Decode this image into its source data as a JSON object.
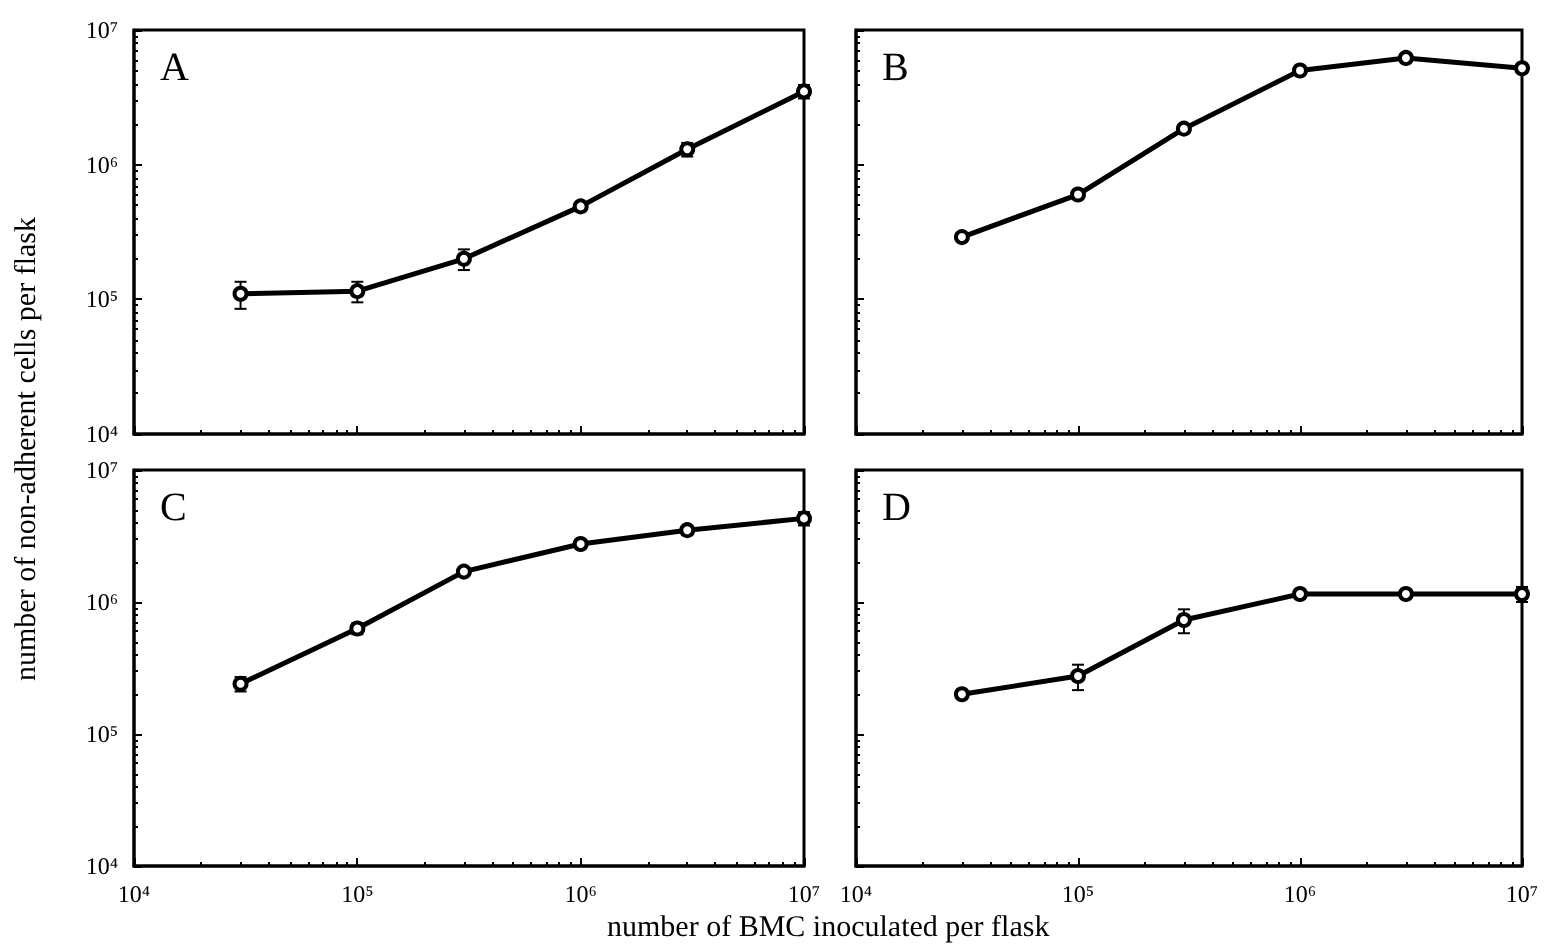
{
  "chart_data": [
    {
      "type": "line",
      "title": "A",
      "ylabel": "number of non-adherent cells per flask",
      "x": [
        30000,
        100000,
        300000,
        1000000,
        3000000,
        10000000
      ],
      "series": [
        {
          "color": "#000000",
          "values": [
            110000,
            115000,
            200000,
            490000,
            1300000,
            3500000
          ],
          "errors": [
            25000,
            20000,
            35000,
            null,
            150000,
            400000
          ]
        }
      ],
      "log": "xy",
      "xlim": [
        10000,
        10000000
      ],
      "ylim": [
        10000,
        10000000
      ],
      "xticks": [
        {
          "value": 10000,
          "label": null
        },
        {
          "value": 100000,
          "label": null
        },
        {
          "value": 1000000,
          "label": null
        },
        {
          "value": 10000000,
          "label": null
        }
      ],
      "yticks": [
        {
          "value": 10000,
          "label": "10⁴"
        },
        {
          "value": 100000,
          "label": "10⁵"
        },
        {
          "value": 1000000,
          "label": "10⁶"
        },
        {
          "value": 10000000,
          "label": "10⁷"
        }
      ],
      "tick_labels": "y",
      "grid": false,
      "marker": "circle",
      "line_style": "solid"
    },
    {
      "type": "line",
      "title": "B",
      "x": [
        30000,
        100000,
        300000,
        1000000,
        3000000,
        10000000
      ],
      "series": [
        {
          "color": "#000000",
          "values": [
            290000,
            600000,
            1850000,
            5000000,
            6200000,
            5200000
          ]
        }
      ],
      "log": "xy",
      "xlim": [
        10000,
        10000000
      ],
      "ylim": [
        10000,
        10000000
      ],
      "xticks": [
        {
          "value": 10000,
          "label": null
        },
        {
          "value": 100000,
          "label": null
        },
        {
          "value": 1000000,
          "label": null
        },
        {
          "value": 10000000,
          "label": null
        }
      ],
      "yticks": [
        {
          "value": 10000,
          "label": null
        },
        {
          "value": 100000,
          "label": null
        },
        {
          "value": 1000000,
          "label": null
        },
        {
          "value": 10000000,
          "label": null
        }
      ],
      "tick_labels": false,
      "grid": false,
      "marker": "circle",
      "line_style": "solid"
    },
    {
      "type": "line",
      "title": "C",
      "xlabel": "number of BMC inoculated per flask",
      "x": [
        30000,
        100000,
        300000,
        1000000,
        3000000,
        10000000
      ],
      "series": [
        {
          "color": "#000000",
          "values": [
            240000,
            630000,
            1700000,
            2750000,
            3500000,
            4300000
          ],
          "errors": [
            30000,
            60000,
            null,
            null,
            250000,
            500000
          ]
        }
      ],
      "log": "xy",
      "xlim": [
        10000,
        10000000
      ],
      "ylim": [
        10000,
        10000000
      ],
      "xticks": [
        {
          "value": 10000,
          "label": "10⁴"
        },
        {
          "value": 100000,
          "label": "10⁵"
        },
        {
          "value": 1000000,
          "label": "10⁶"
        },
        {
          "value": 10000000,
          "label": "10⁷"
        }
      ],
      "yticks": [
        {
          "value": 10000,
          "label": "10⁴"
        },
        {
          "value": 100000,
          "label": "10⁵"
        },
        {
          "value": 1000000,
          "label": "10⁶"
        },
        {
          "value": 10000000,
          "label": "10⁷"
        }
      ],
      "grid": false,
      "marker": "circle",
      "line_style": "solid"
    },
    {
      "type": "line",
      "title": "D",
      "x": [
        30000,
        100000,
        300000,
        1000000,
        3000000,
        10000000
      ],
      "series": [
        {
          "color": "#000000",
          "values": [
            200000,
            275000,
            730000,
            1150000,
            1150000,
            1150000
          ],
          "errors": [
            null,
            60000,
            150000,
            null,
            null,
            150000
          ]
        }
      ],
      "log": "xy",
      "xlim": [
        10000,
        10000000
      ],
      "ylim": [
        10000,
        10000000
      ],
      "xticks": [
        {
          "value": 10000,
          "label": "10⁴"
        },
        {
          "value": 100000,
          "label": "10⁵"
        },
        {
          "value": 1000000,
          "label": "10⁶"
        },
        {
          "value": 10000000,
          "label": "10⁷"
        }
      ],
      "yticks": [
        {
          "value": 10000,
          "label": null
        },
        {
          "value": 100000,
          "label": null
        },
        {
          "value": 1000000,
          "label": null
        },
        {
          "value": 10000000,
          "label": null
        }
      ],
      "tick_labels": "x",
      "grid": false,
      "marker": "circle",
      "line_style": "solid"
    }
  ]
}
